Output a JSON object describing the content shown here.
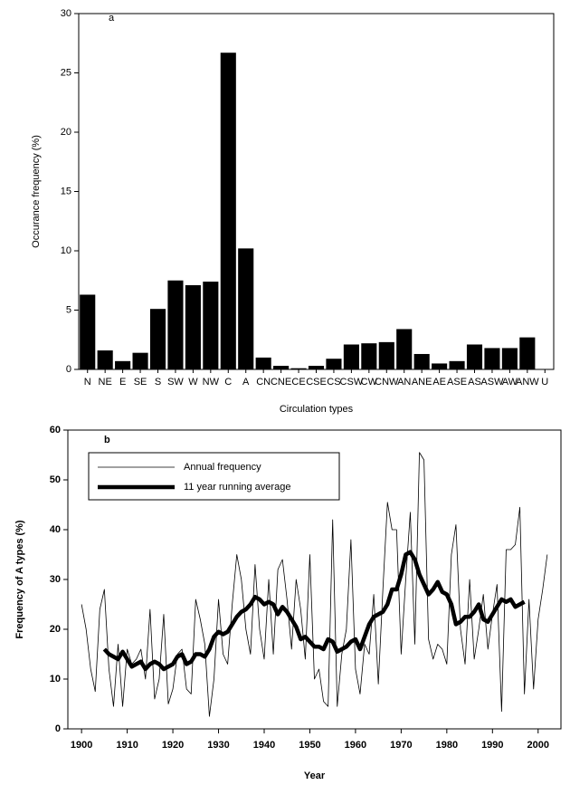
{
  "chart_data": [
    {
      "type": "bar",
      "label": "a",
      "x_label": "Circulation types",
      "y_label": "Occurance frequency (%)",
      "color": "#000000",
      "categories": [
        "N",
        "NE",
        "E",
        "SE",
        "S",
        "SW",
        "W",
        "NW",
        "C",
        "A",
        "CN",
        "CNE",
        "CE",
        "CSE",
        "CS",
        "CSW",
        "CW",
        "CNW",
        "AN",
        "ANE",
        "AE",
        "ASE",
        "AS",
        "ASW",
        "AW",
        "ANW",
        "U"
      ],
      "values": [
        6.3,
        1.6,
        0.7,
        1.4,
        5.1,
        7.5,
        7.1,
        7.4,
        26.7,
        10.2,
        1.0,
        0.3,
        0.1,
        0.3,
        0.9,
        2.1,
        2.2,
        2.3,
        3.4,
        1.3,
        0.5,
        0.7,
        2.1,
        1.8,
        1.8,
        2.7,
        0
      ],
      "ylim": [
        0,
        30
      ],
      "yticks": [
        0,
        5,
        10,
        15,
        20,
        25,
        30
      ]
    },
    {
      "type": "line",
      "label": "b",
      "x_label": "Year",
      "y_label": "Frequency of A types (%)",
      "legend": "upper left",
      "x": [
        1900,
        1901,
        1902,
        1903,
        1904,
        1905,
        1906,
        1907,
        1908,
        1909,
        1910,
        1911,
        1912,
        1913,
        1914,
        1915,
        1916,
        1917,
        1918,
        1919,
        1920,
        1921,
        1922,
        1923,
        1924,
        1925,
        1926,
        1927,
        1928,
        1929,
        1930,
        1931,
        1932,
        1933,
        1934,
        1935,
        1936,
        1937,
        1938,
        1939,
        1940,
        1941,
        1942,
        1943,
        1944,
        1945,
        1946,
        1947,
        1948,
        1949,
        1950,
        1951,
        1952,
        1953,
        1954,
        1955,
        1956,
        1957,
        1958,
        1959,
        1960,
        1961,
        1962,
        1963,
        1964,
        1965,
        1966,
        1967,
        1968,
        1969,
        1970,
        1971,
        1972,
        1973,
        1974,
        1975,
        1976,
        1977,
        1978,
        1979,
        1980,
        1981,
        1982,
        1983,
        1984,
        1985,
        1986,
        1987,
        1988,
        1989,
        1990,
        1991,
        1992,
        1993,
        1994,
        1995,
        1996,
        1997,
        1998,
        1999,
        2000,
        2001,
        2002
      ],
      "series": [
        {
          "name": "Annual frequency",
          "color": "#000000",
          "values": [
            25,
            20,
            12,
            7.5,
            24,
            28,
            12,
            4.5,
            17,
            4.5,
            16,
            13,
            14,
            16,
            10,
            24,
            6,
            10,
            23,
            5,
            8,
            15,
            16,
            8,
            7,
            26,
            22,
            17,
            2.5,
            10,
            26,
            15,
            13,
            25,
            35,
            30,
            20,
            15,
            33,
            20,
            14,
            30,
            15,
            32,
            34,
            26,
            16,
            30,
            24,
            14,
            35,
            10,
            12,
            5.5,
            4.5,
            42,
            4.5,
            15,
            20,
            38,
            12,
            7,
            17,
            15,
            27,
            9,
            28,
            45.5,
            40,
            40,
            15,
            30,
            43.5,
            17,
            55.5,
            54,
            18,
            14,
            17,
            16,
            13,
            35,
            41,
            20,
            13,
            30,
            14,
            20,
            27,
            16,
            23,
            29,
            3.5,
            36,
            36,
            37,
            44.5,
            7,
            26,
            8,
            22,
            28,
            35
          ]
        },
        {
          "name": "11 year running average",
          "color": "#000000",
          "values": [
            null,
            null,
            null,
            null,
            null,
            16,
            15,
            14.5,
            14,
            15.5,
            14,
            12.5,
            13,
            13.5,
            12,
            13,
            13.5,
            13,
            12,
            12.5,
            13,
            14.5,
            15,
            13,
            13.5,
            15,
            15,
            14.5,
            16,
            18.5,
            19.5,
            19,
            19.5,
            21,
            22.5,
            23.5,
            24,
            25,
            26.5,
            26,
            25,
            25.5,
            25,
            23,
            24.5,
            23.5,
            22,
            20.5,
            18,
            18.5,
            17.5,
            16.5,
            16.5,
            16,
            18,
            17.5,
            15.5,
            16,
            16.5,
            17.5,
            18,
            16,
            18.5,
            21,
            22.5,
            23,
            23.5,
            25,
            28,
            28,
            31,
            35,
            35.5,
            34,
            31,
            29,
            27,
            28,
            29.5,
            27.5,
            27,
            25,
            21,
            21.5,
            22.5,
            22.5,
            23.5,
            25,
            22,
            21.5,
            23,
            24.5,
            26,
            25.5,
            26,
            24.5,
            25,
            25.5,
            null,
            null,
            null,
            null,
            null
          ]
        }
      ],
      "xlim": [
        1897,
        2005
      ],
      "xticks": [
        1900,
        1910,
        1920,
        1930,
        1940,
        1950,
        1960,
        1970,
        1980,
        1990,
        2000
      ],
      "ylim": [
        0,
        60
      ],
      "yticks": [
        0,
        10,
        20,
        30,
        40,
        50,
        60
      ]
    }
  ]
}
